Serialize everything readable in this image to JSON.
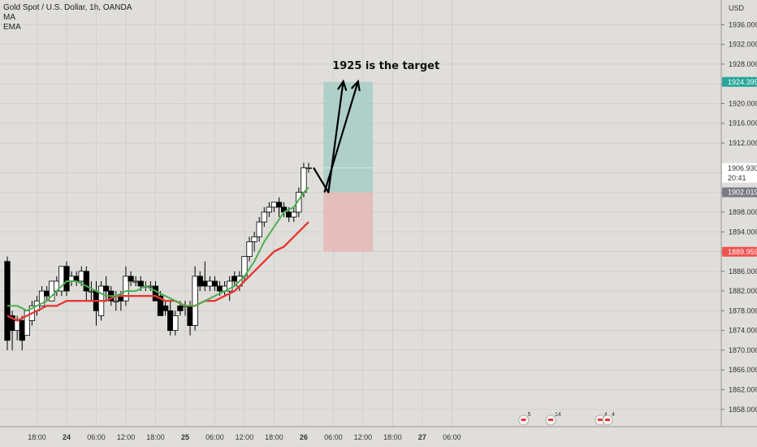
{
  "legend": {
    "title": "Gold Spot / U.S. Dollar, 1h, OANDA",
    "indicator_1": "MA",
    "indicator_2": "EMA"
  },
  "colors": {
    "background": "#e0dedb",
    "grid": "#d1cfcb",
    "candle_up_fill": "#ffffff",
    "candle_down_fill": "#000000",
    "candle_border": "#000000",
    "ma_line": "#4caf50",
    "ema_line": "#e53935",
    "profit_zone": "#a6cec6",
    "loss_zone": "#e4b9b5",
    "tag_target": "#26a69a",
    "tag_stop": "#ef5350",
    "tag_entry": "#787b86",
    "tag_price": "#ffffff"
  },
  "annotation": {
    "text": "1925 is the target"
  },
  "price_axis_tags": {
    "currency_label": "USD",
    "target": "1924.395",
    "current_price": "1906.930",
    "countdown": "20:41",
    "entry": "1902.019",
    "stop": "1889.959"
  },
  "events": [
    {
      "name": "event-badge-1",
      "icon": "flag-badge-icon",
      "count": "5",
      "x": 104.5
    },
    {
      "name": "event-badge-2",
      "icon": "flag-badge-icon",
      "count": "14",
      "x": 110
    },
    {
      "name": "event-badge-3",
      "icon": "flag-badge-icon",
      "count": "4",
      "x": 120
    },
    {
      "name": "event-badge-4",
      "icon": "flag-badge-icon",
      "count": "4",
      "x": 121.5
    }
  ],
  "chart_data": {
    "type": "candlestick",
    "title": "Gold Spot / U.S. Dollar, 1h, OANDA",
    "x_unit": "hours",
    "ylim": [
      1854.5,
      1941.0
    ],
    "xlim": [
      0,
      146
    ],
    "y_ticks": [
      "1858.000",
      "1862.000",
      "1866.000",
      "1870.000",
      "1874.000",
      "1878.000",
      "1882.000",
      "1886.000",
      "1890.000",
      "1894.000",
      "1898.000",
      "1902.000",
      "1906.000",
      "1912.000",
      "1916.000",
      "1920.000",
      "1924.000",
      "1928.000",
      "1932.000",
      "1936.000"
    ],
    "x_ticks": [
      {
        "x": 6,
        "label": "18:00"
      },
      {
        "x": 12,
        "label": "24"
      },
      {
        "x": 18,
        "label": "06:00"
      },
      {
        "x": 24,
        "label": "12:00"
      },
      {
        "x": 30,
        "label": "18:00"
      },
      {
        "x": 36,
        "label": "25"
      },
      {
        "x": 42,
        "label": "06:00"
      },
      {
        "x": 48,
        "label": "12:00"
      },
      {
        "x": 54,
        "label": "18:00"
      },
      {
        "x": 60,
        "label": "26"
      },
      {
        "x": 66,
        "label": "06:00"
      },
      {
        "x": 72,
        "label": "12:00"
      },
      {
        "x": 78,
        "label": "18:00"
      },
      {
        "x": 84,
        "label": "27"
      },
      {
        "x": 90,
        "label": "06:00"
      }
    ],
    "candles": [
      {
        "x": 0,
        "o": 1888,
        "h": 1889,
        "c": 1872,
        "l": 1870
      },
      {
        "x": 1,
        "o": 1877,
        "h": 1878,
        "c": 1874,
        "l": 1870
      },
      {
        "x": 2,
        "o": 1874,
        "h": 1877,
        "c": 1876,
        "l": 1872
      },
      {
        "x": 3,
        "o": 1876,
        "h": 1877,
        "c": 1872,
        "l": 1870
      },
      {
        "x": 4,
        "o": 1873,
        "h": 1878,
        "c": 1878,
        "l": 1873
      },
      {
        "x": 5,
        "o": 1876,
        "h": 1880,
        "c": 1879,
        "l": 1875
      },
      {
        "x": 6,
        "o": 1878,
        "h": 1881,
        "c": 1880,
        "l": 1877
      },
      {
        "x": 7,
        "o": 1879,
        "h": 1883,
        "c": 1882,
        "l": 1879
      },
      {
        "x": 8,
        "o": 1882,
        "h": 1883,
        "c": 1881,
        "l": 1880
      },
      {
        "x": 9,
        "o": 1880,
        "h": 1884,
        "c": 1884,
        "l": 1880
      },
      {
        "x": 10,
        "o": 1882,
        "h": 1885,
        "c": 1884,
        "l": 1881
      },
      {
        "x": 11,
        "o": 1882,
        "h": 1887,
        "c": 1887,
        "l": 1881
      },
      {
        "x": 12,
        "o": 1887,
        "h": 1888,
        "c": 1882,
        "l": 1881
      },
      {
        "x": 13,
        "o": 1884,
        "h": 1886,
        "c": 1885,
        "l": 1883
      },
      {
        "x": 14,
        "o": 1885,
        "h": 1886,
        "c": 1884,
        "l": 1883
      },
      {
        "x": 15,
        "o": 1884,
        "h": 1887,
        "c": 1886,
        "l": 1883
      },
      {
        "x": 16,
        "o": 1886,
        "h": 1887,
        "c": 1882,
        "l": 1880
      },
      {
        "x": 17,
        "o": 1882,
        "h": 1884,
        "c": 1882,
        "l": 1880
      },
      {
        "x": 18,
        "o": 1882,
        "h": 1884,
        "c": 1878,
        "l": 1875
      },
      {
        "x": 19,
        "o": 1877,
        "h": 1884,
        "c": 1883,
        "l": 1876
      },
      {
        "x": 20,
        "o": 1883,
        "h": 1885,
        "c": 1882,
        "l": 1880
      },
      {
        "x": 21,
        "o": 1882,
        "h": 1883,
        "c": 1880,
        "l": 1879
      },
      {
        "x": 22,
        "o": 1880,
        "h": 1882,
        "c": 1880,
        "l": 1878
      },
      {
        "x": 23,
        "o": 1881,
        "h": 1882,
        "c": 1880,
        "l": 1878
      },
      {
        "x": 24,
        "o": 1880,
        "h": 1887,
        "c": 1885,
        "l": 1879
      },
      {
        "x": 25,
        "o": 1885,
        "h": 1886,
        "c": 1884,
        "l": 1883
      },
      {
        "x": 26,
        "o": 1884,
        "h": 1885,
        "c": 1884,
        "l": 1883
      },
      {
        "x": 27,
        "o": 1884,
        "h": 1885,
        "c": 1883,
        "l": 1882
      },
      {
        "x": 28,
        "o": 1883,
        "h": 1884,
        "c": 1883,
        "l": 1882
      },
      {
        "x": 29,
        "o": 1883,
        "h": 1884,
        "c": 1883,
        "l": 1882
      },
      {
        "x": 30,
        "o": 1883,
        "h": 1884,
        "c": 1880,
        "l": 1880
      },
      {
        "x": 31,
        "o": 1881,
        "h": 1882,
        "c": 1877,
        "l": 1877
      },
      {
        "x": 32,
        "o": 1879,
        "h": 1880,
        "c": 1878,
        "l": 1877
      },
      {
        "x": 33,
        "o": 1878,
        "h": 1880,
        "c": 1874,
        "l": 1873
      },
      {
        "x": 34,
        "o": 1874,
        "h": 1878,
        "c": 1877,
        "l": 1873
      },
      {
        "x": 35,
        "o": 1879,
        "h": 1880,
        "c": 1878,
        "l": 1877
      },
      {
        "x": 36,
        "o": 1879,
        "h": 1880,
        "c": 1879,
        "l": 1877
      },
      {
        "x": 37,
        "o": 1879,
        "h": 1880,
        "c": 1875,
        "l": 1873
      },
      {
        "x": 38,
        "o": 1875,
        "h": 1887,
        "c": 1885,
        "l": 1874
      },
      {
        "x": 39,
        "o": 1885,
        "h": 1886,
        "c": 1883,
        "l": 1882
      },
      {
        "x": 40,
        "o": 1884,
        "h": 1888,
        "c": 1883,
        "l": 1882
      },
      {
        "x": 41,
        "o": 1883,
        "h": 1885,
        "c": 1884,
        "l": 1882
      },
      {
        "x": 42,
        "o": 1884,
        "h": 1885,
        "c": 1883,
        "l": 1882
      },
      {
        "x": 43,
        "o": 1883,
        "h": 1884,
        "c": 1882,
        "l": 1881
      },
      {
        "x": 44,
        "o": 1882,
        "h": 1884,
        "c": 1883,
        "l": 1881
      },
      {
        "x": 45,
        "o": 1882,
        "h": 1885,
        "c": 1884,
        "l": 1880
      },
      {
        "x": 46,
        "o": 1885,
        "h": 1886,
        "c": 1884,
        "l": 1883
      },
      {
        "x": 47,
        "o": 1883,
        "h": 1886,
        "c": 1885,
        "l": 1882
      },
      {
        "x": 48,
        "o": 1885,
        "h": 1889,
        "c": 1889,
        "l": 1884
      },
      {
        "x": 49,
        "o": 1889,
        "h": 1893,
        "c": 1892,
        "l": 1888
      },
      {
        "x": 50,
        "o": 1892,
        "h": 1894,
        "c": 1893,
        "l": 1890
      },
      {
        "x": 51,
        "o": 1893,
        "h": 1897,
        "c": 1896,
        "l": 1892
      },
      {
        "x": 52,
        "o": 1896,
        "h": 1899,
        "c": 1898,
        "l": 1895
      },
      {
        "x": 53,
        "o": 1898,
        "h": 1900,
        "c": 1899,
        "l": 1897
      },
      {
        "x": 54,
        "o": 1899,
        "h": 1900,
        "c": 1900,
        "l": 1898
      },
      {
        "x": 55,
        "o": 1900,
        "h": 1901,
        "c": 1899,
        "l": 1897
      },
      {
        "x": 56,
        "o": 1899,
        "h": 1900,
        "c": 1898,
        "l": 1897
      },
      {
        "x": 57,
        "o": 1898,
        "h": 1899,
        "c": 1897,
        "l": 1896
      },
      {
        "x": 58,
        "o": 1897,
        "h": 1899,
        "c": 1898,
        "l": 1896
      },
      {
        "x": 59,
        "o": 1898,
        "h": 1903,
        "c": 1902,
        "l": 1897
      },
      {
        "x": 60,
        "o": 1902,
        "h": 1908,
        "c": 1907,
        "l": 1901
      },
      {
        "x": 61,
        "o": 1907,
        "h": 1908,
        "c": 1907,
        "l": 1906
      }
    ],
    "ma": [
      [
        0,
        1879
      ],
      [
        2,
        1879
      ],
      [
        4,
        1878
      ],
      [
        6,
        1879
      ],
      [
        8,
        1880
      ],
      [
        10,
        1882
      ],
      [
        12,
        1884
      ],
      [
        14,
        1884
      ],
      [
        16,
        1883
      ],
      [
        18,
        1882
      ],
      [
        20,
        1881
      ],
      [
        22,
        1881
      ],
      [
        24,
        1882
      ],
      [
        26,
        1882
      ],
      [
        28,
        1883
      ],
      [
        30,
        1882
      ],
      [
        32,
        1881
      ],
      [
        34,
        1880
      ],
      [
        36,
        1879
      ],
      [
        38,
        1879
      ],
      [
        40,
        1880
      ],
      [
        42,
        1881
      ],
      [
        44,
        1882
      ],
      [
        46,
        1883
      ],
      [
        48,
        1885
      ],
      [
        50,
        1888
      ],
      [
        52,
        1892
      ],
      [
        54,
        1895
      ],
      [
        56,
        1898
      ],
      [
        58,
        1899
      ],
      [
        60,
        1902
      ],
      [
        61,
        1903
      ]
    ],
    "ema": [
      [
        0,
        1877
      ],
      [
        2,
        1876
      ],
      [
        4,
        1877
      ],
      [
        6,
        1878
      ],
      [
        8,
        1879
      ],
      [
        10,
        1879
      ],
      [
        12,
        1880
      ],
      [
        14,
        1880
      ],
      [
        16,
        1880
      ],
      [
        18,
        1880
      ],
      [
        20,
        1880
      ],
      [
        22,
        1881
      ],
      [
        24,
        1881
      ],
      [
        26,
        1881
      ],
      [
        28,
        1881
      ],
      [
        30,
        1881
      ],
      [
        32,
        1880
      ],
      [
        34,
        1880
      ],
      [
        36,
        1879
      ],
      [
        38,
        1879
      ],
      [
        40,
        1880
      ],
      [
        42,
        1880
      ],
      [
        44,
        1881
      ],
      [
        46,
        1882
      ],
      [
        48,
        1884
      ],
      [
        50,
        1886
      ],
      [
        52,
        1888
      ],
      [
        54,
        1890
      ],
      [
        56,
        1891
      ],
      [
        58,
        1893
      ],
      [
        60,
        1895
      ],
      [
        61,
        1896
      ]
    ],
    "position": {
      "x_start": 64,
      "x_end": 74,
      "entry": 1902.019,
      "target": 1924.395,
      "stop": 1889.959
    },
    "arrows": [
      [
        [
          62,
          1907
        ],
        [
          65,
          1902
        ],
        [
          68,
          1924.5
        ]
      ],
      [
        [
          64.2,
          1902
        ],
        [
          71,
          1924.5
        ]
      ]
    ]
  }
}
